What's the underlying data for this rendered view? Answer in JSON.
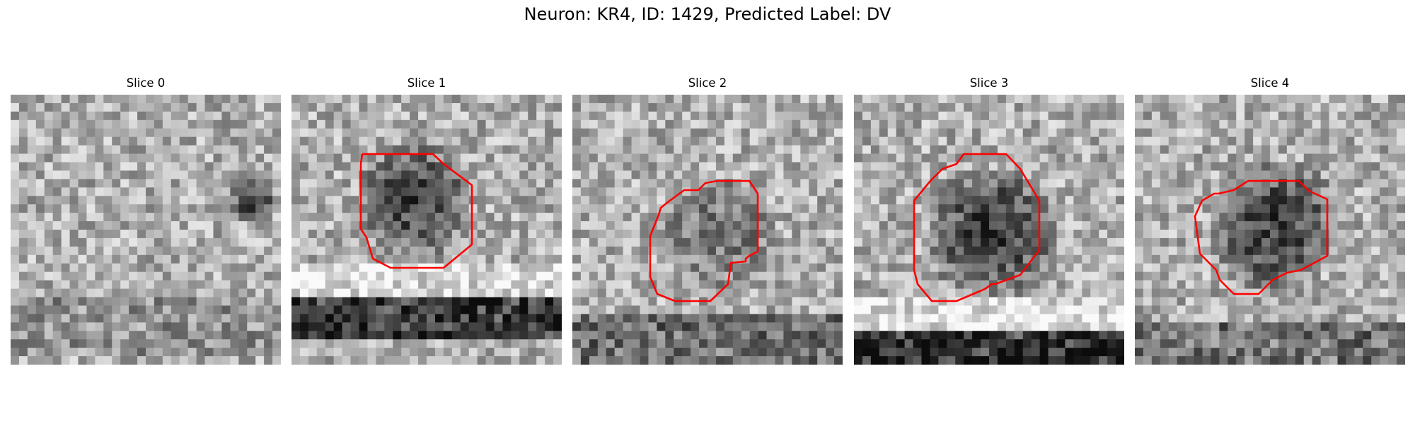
{
  "figure": {
    "title": "Neuron: KR4, ID: 1429, Predicted Label: DV"
  },
  "colors": {
    "contour": "#ff0000",
    "background": "#ffffff",
    "image_colormap": "grayscale"
  },
  "panels": [
    {
      "title": "Slice 0",
      "has_contour": false
    },
    {
      "title": "Slice 1",
      "has_contour": true
    },
    {
      "title": "Slice 2",
      "has_contour": true
    },
    {
      "title": "Slice 3",
      "has_contour": true
    },
    {
      "title": "Slice 4",
      "has_contour": true
    }
  ]
}
